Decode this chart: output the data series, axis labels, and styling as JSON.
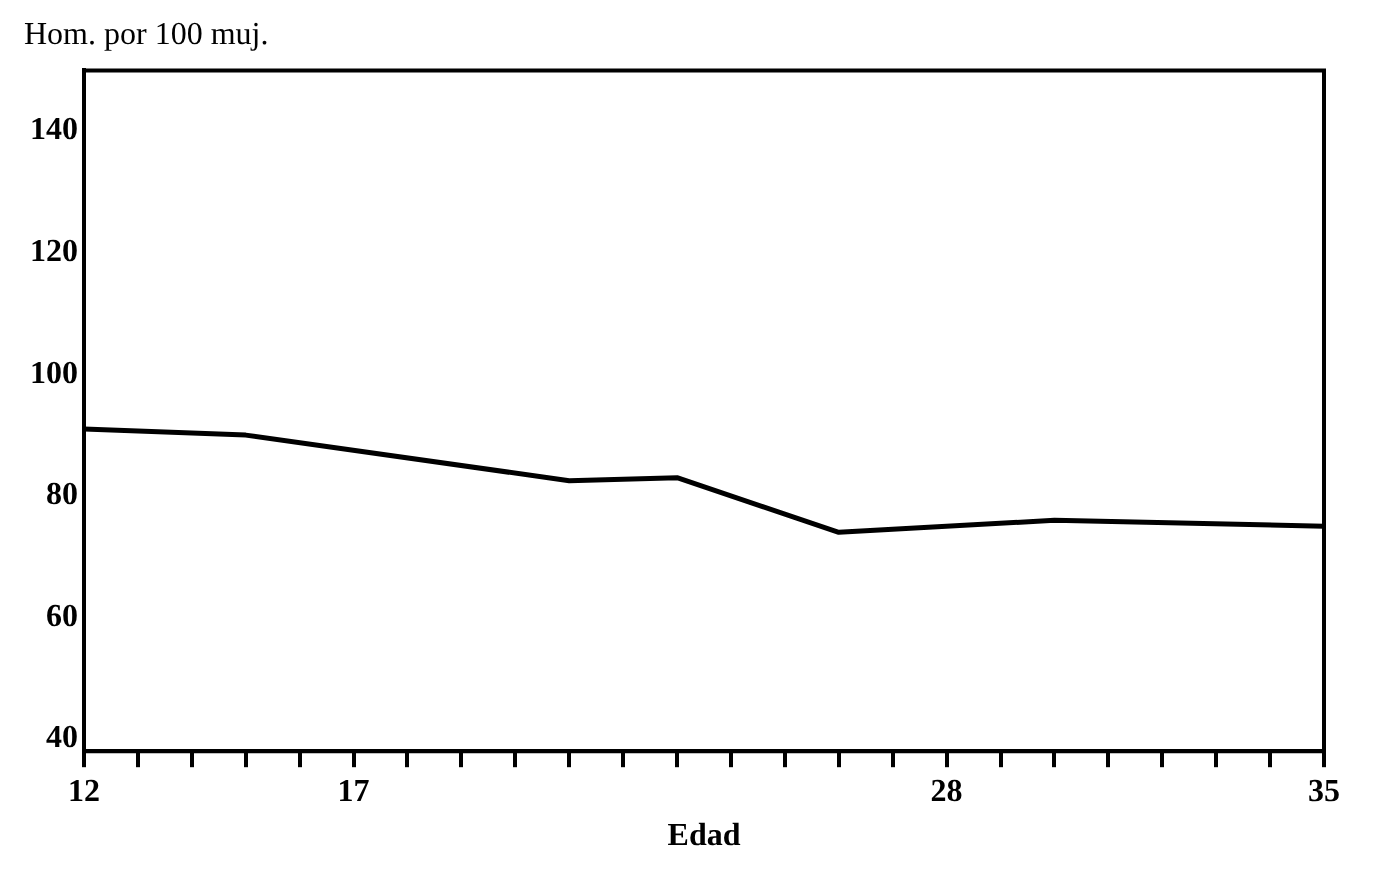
{
  "chart_data": {
    "type": "line",
    "xlabel": "Edad",
    "ylabel": "Hom. por 100 muj.",
    "x": [
      12,
      15,
      21,
      23,
      26,
      30,
      35
    ],
    "values": [
      91,
      90,
      82.5,
      83,
      74,
      76,
      75
    ],
    "color": "#000000",
    "xlim": [
      12,
      35
    ],
    "xticks": [
      12,
      {
        "value": 13,
        "label": null
      },
      {
        "value": 14,
        "label": null
      },
      {
        "value": 15,
        "label": null
      },
      {
        "value": 16,
        "label": null
      },
      17,
      {
        "value": 18,
        "label": null
      },
      {
        "value": 19,
        "label": null
      },
      {
        "value": 20,
        "label": null
      },
      {
        "value": 21,
        "label": null
      },
      {
        "value": 22,
        "label": null
      },
      {
        "value": 23,
        "label": null
      },
      {
        "value": 24,
        "label": null
      },
      {
        "value": 25,
        "label": null
      },
      {
        "value": 26,
        "label": null
      },
      {
        "value": 27,
        "label": null
      },
      28,
      {
        "value": 29,
        "label": null
      },
      {
        "value": 30,
        "label": null
      },
      {
        "value": 31,
        "label": null
      },
      {
        "value": 32,
        "label": null
      },
      {
        "value": 33,
        "label": null
      },
      {
        "value": 34,
        "label": null
      },
      35
    ],
    "ylim": [
      38,
      150
    ],
    "yticks": [
      40,
      60,
      80,
      100,
      120,
      140
    ],
    "grid": false,
    "legend": false,
    "marker": "none",
    "line_style": "solid"
  }
}
